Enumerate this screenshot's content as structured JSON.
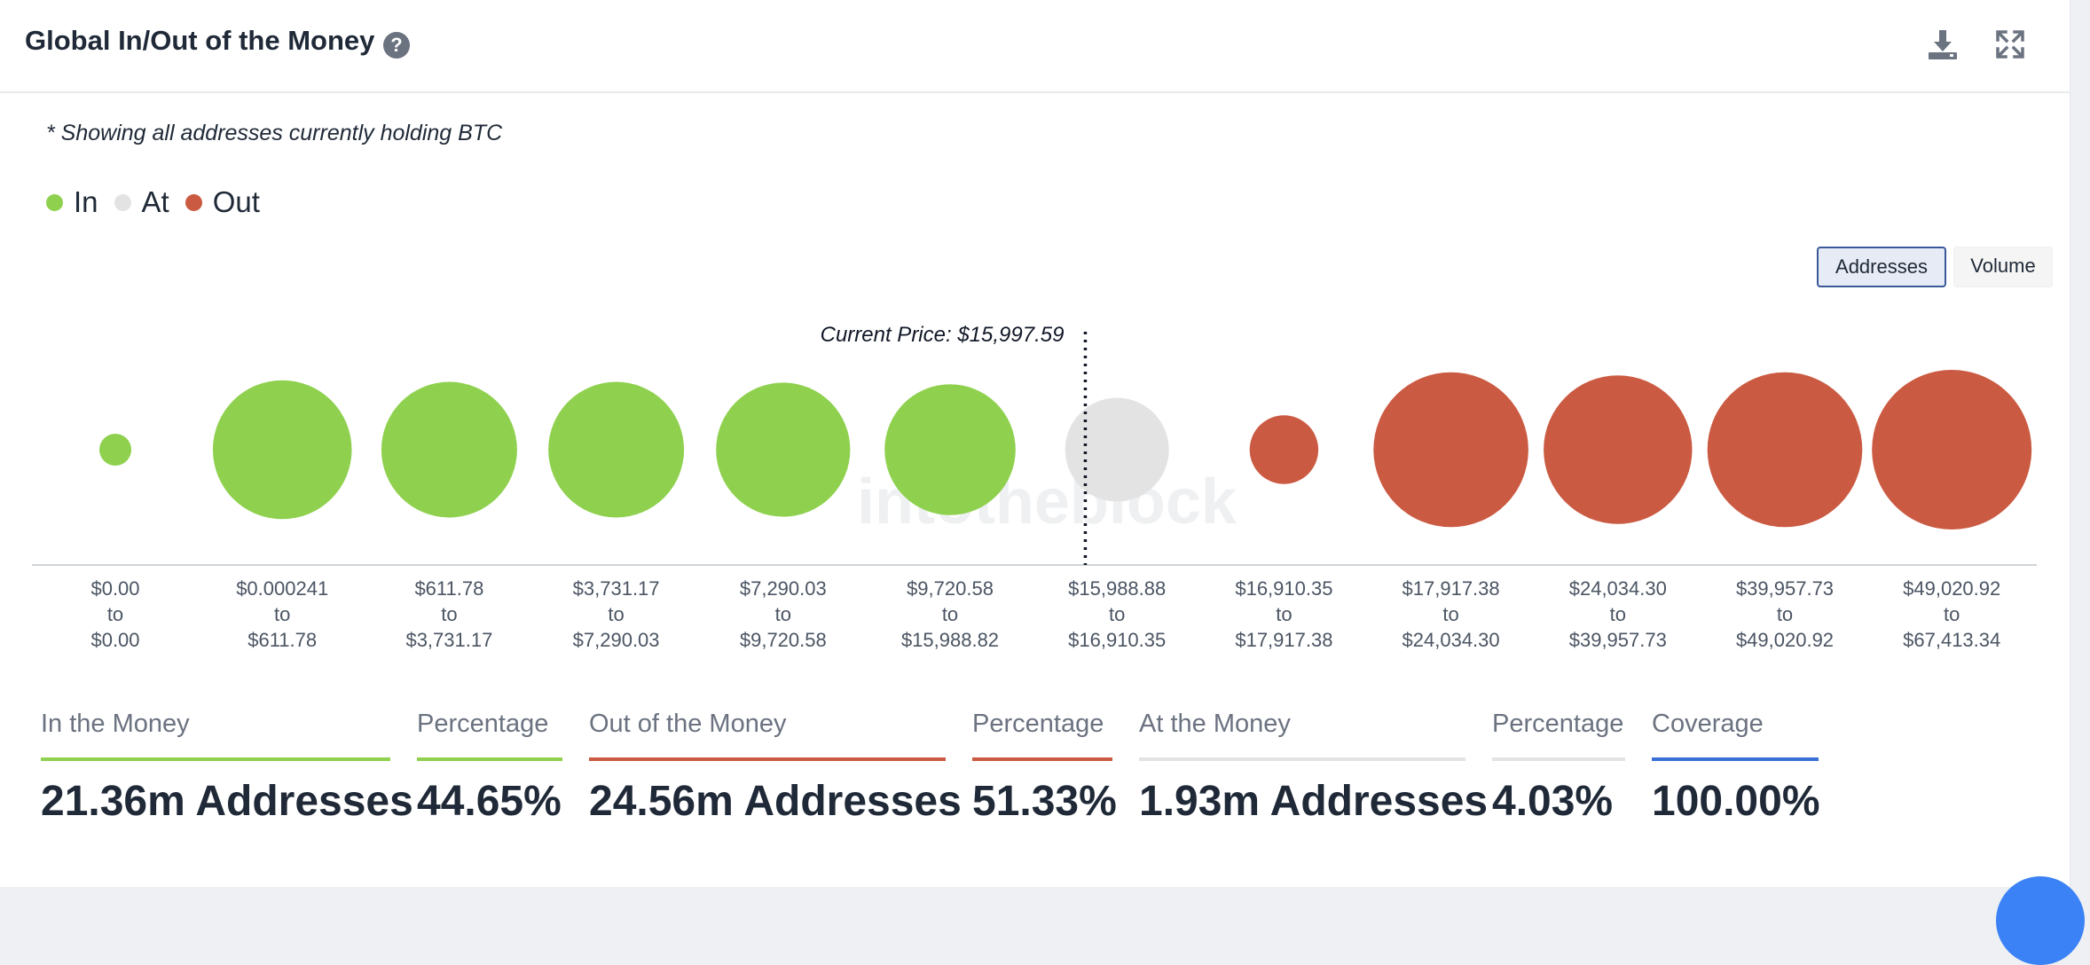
{
  "header": {
    "title": "Global In/Out of the Money",
    "help_glyph": "?",
    "icons": [
      "help-icon",
      "download-icon",
      "expand-icon"
    ]
  },
  "note": "* Showing all addresses currently holding BTC",
  "legend": [
    {
      "label": "In",
      "color": "#8fd14f"
    },
    {
      "label": "At",
      "color": "#e3e3e3"
    },
    {
      "label": "Out",
      "color": "#cb5a42"
    }
  ],
  "toggles": {
    "addresses": "Addresses",
    "volume": "Volume"
  },
  "chart_data": {
    "type": "bubble",
    "current_price_label": "Current Price: $15,997.59",
    "current_price_after_index": 5,
    "watermark": "intotheblock",
    "bins": [
      {
        "from": "$0.00",
        "to_word": "to",
        "to": "$0.00",
        "status": "in",
        "relative_size": 0.2
      },
      {
        "from": "$0.000241",
        "to_word": "to",
        "to": "$611.78",
        "status": "in",
        "relative_size": 0.87
      },
      {
        "from": "$611.78",
        "to_word": "to",
        "to": "$3,731.17",
        "status": "in",
        "relative_size": 0.85
      },
      {
        "from": "$3,731.17",
        "to_word": "to",
        "to": "$7,290.03",
        "status": "in",
        "relative_size": 0.85
      },
      {
        "from": "$7,290.03",
        "to_word": "to",
        "to": "$9,720.58",
        "status": "in",
        "relative_size": 0.84
      },
      {
        "from": "$9,720.58",
        "to_word": "to",
        "to": "$15,988.82",
        "status": "in",
        "relative_size": 0.82
      },
      {
        "from": "$15,988.88",
        "to_word": "to",
        "to": "$16,910.35",
        "status": "at",
        "relative_size": 0.65
      },
      {
        "from": "$16,910.35",
        "to_word": "to",
        "to": "$17,917.38",
        "status": "out",
        "relative_size": 0.43
      },
      {
        "from": "$17,917.38",
        "to_word": "to",
        "to": "$24,034.30",
        "status": "out",
        "relative_size": 0.97
      },
      {
        "from": "$24,034.30",
        "to_word": "to",
        "to": "$39,957.73",
        "status": "out",
        "relative_size": 0.93
      },
      {
        "from": "$39,957.73",
        "to_word": "to",
        "to": "$49,020.92",
        "status": "out",
        "relative_size": 0.97
      },
      {
        "from": "$49,020.92",
        "to_word": "to",
        "to": "$67,413.34",
        "status": "out",
        "relative_size": 1.0
      }
    ]
  },
  "stats": {
    "in_money": {
      "label": "In the Money",
      "value": "21.36m Addresses",
      "color": "#8fd14f"
    },
    "in_pct": {
      "label": "Percentage",
      "value": "44.65%",
      "color": "#8fd14f"
    },
    "out_money": {
      "label": "Out of the Money",
      "value": "24.56m Addresses",
      "color": "#cb5a42"
    },
    "out_pct": {
      "label": "Percentage",
      "value": "51.33%",
      "color": "#cb5a42"
    },
    "at_money": {
      "label": "At the Money",
      "value": "1.93m Addresses",
      "color": "#e3e3e3"
    },
    "at_pct": {
      "label": "Percentage",
      "value": "4.03%",
      "color": "#e3e3e3"
    },
    "coverage": {
      "label": "Coverage",
      "value": "100.00%",
      "color": "#3b6fd8"
    }
  }
}
